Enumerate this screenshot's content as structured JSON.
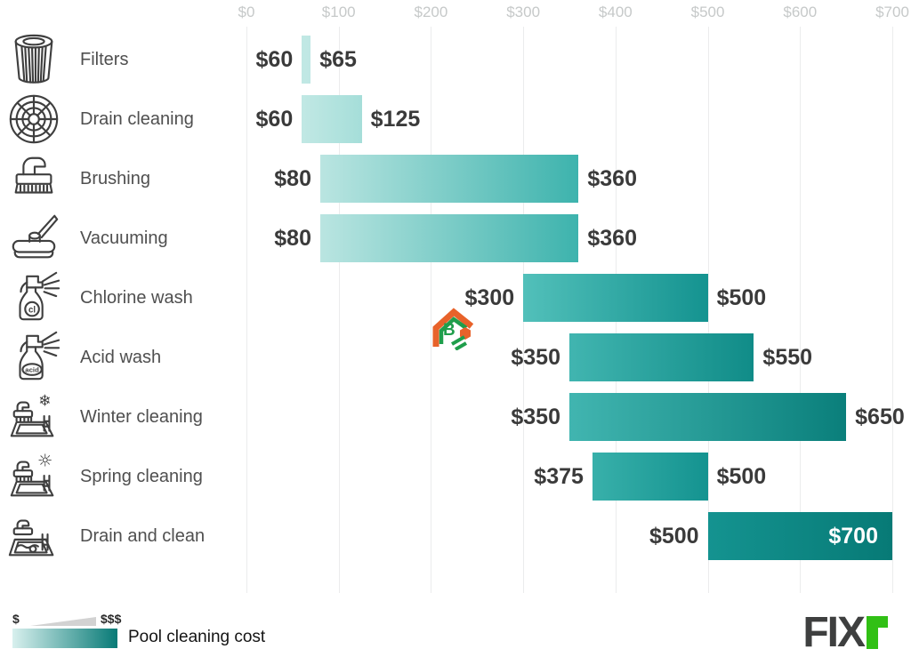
{
  "chart_data": {
    "type": "bar",
    "orientation": "horizontal-range",
    "title": "",
    "xlabel": "",
    "ylabel": "",
    "xlim": [
      0,
      700
    ],
    "x_ticks": [
      "$0",
      "$100",
      "$200",
      "$300",
      "$400",
      "$500",
      "$600",
      "$700"
    ],
    "grid": true,
    "legend_position": "bottom-left",
    "series_name": "Pool cleaning cost",
    "rows": [
      {
        "category": "Filters",
        "icon": "filters-icon",
        "min": 60,
        "max": 65,
        "min_label": "$60",
        "max_label": "$65",
        "max_label_inside": false
      },
      {
        "category": "Drain cleaning",
        "icon": "drain-icon",
        "min": 60,
        "max": 125,
        "min_label": "$60",
        "max_label": "$125",
        "max_label_inside": false
      },
      {
        "category": "Brushing",
        "icon": "brush-icon",
        "min": 80,
        "max": 360,
        "min_label": "$80",
        "max_label": "$360",
        "max_label_inside": false
      },
      {
        "category": "Vacuuming",
        "icon": "vacuum-icon",
        "min": 80,
        "max": 360,
        "min_label": "$80",
        "max_label": "$360",
        "max_label_inside": false
      },
      {
        "category": "Chlorine wash",
        "icon": "chlorine-spray-icon",
        "min": 300,
        "max": 500,
        "min_label": "$300",
        "max_label": "$500",
        "max_label_inside": false
      },
      {
        "category": "Acid wash",
        "icon": "acid-spray-icon",
        "min": 350,
        "max": 550,
        "min_label": "$350",
        "max_label": "$550",
        "max_label_inside": false
      },
      {
        "category": "Winter cleaning",
        "icon": "pool-winter-icon",
        "min": 350,
        "max": 650,
        "min_label": "$350",
        "max_label": "$650",
        "max_label_inside": false
      },
      {
        "category": "Spring cleaning",
        "icon": "pool-spring-icon",
        "min": 375,
        "max": 500,
        "min_label": "$375",
        "max_label": "$500",
        "max_label_inside": false
      },
      {
        "category": "Drain and clean",
        "icon": "pool-drain-clean-icon",
        "min": 500,
        "max": 700,
        "min_label": "$500",
        "max_label": "$700",
        "max_label_inside": true
      }
    ]
  },
  "axis": {
    "ticks": [
      {
        "value": 0,
        "label": "$0"
      },
      {
        "value": 100,
        "label": "$100"
      },
      {
        "value": 200,
        "label": "$200"
      },
      {
        "value": 300,
        "label": "$300"
      },
      {
        "value": 400,
        "label": "$400"
      },
      {
        "value": 500,
        "label": "$500"
      },
      {
        "value": 600,
        "label": "$600"
      },
      {
        "value": 700,
        "label": "$700"
      }
    ]
  },
  "legend": {
    "low_symbol": "$",
    "high_symbol": "$$$",
    "series_label": "Pool cleaning cost"
  },
  "branding": {
    "logo_main": "FIX",
    "logo_r": "r"
  },
  "watermark": {
    "letter": "B"
  },
  "colors": {
    "scale_stops": [
      [
        0,
        "#d8f0ee"
      ],
      [
        100,
        "#b2e2de"
      ],
      [
        200,
        "#7fd0cb"
      ],
      [
        300,
        "#52c0ba"
      ],
      [
        400,
        "#2faaa5"
      ],
      [
        500,
        "#149390"
      ],
      [
        600,
        "#0c847f"
      ],
      [
        700,
        "#077a76"
      ]
    ],
    "grid_line": "#ebeced",
    "tick_label": "#c6c9c9",
    "value_label": "#3a3a3a",
    "value_label_inverse": "#ffffff",
    "category_label": "#4f4f4f",
    "icon_stroke": "#3f3f3f",
    "legend_wedge": "#d2d2d2",
    "logo_text": "#3e3f3f",
    "logo_green": "#31c015",
    "watermark_orange": "#e8622a",
    "watermark_green": "#1f9e4b"
  }
}
